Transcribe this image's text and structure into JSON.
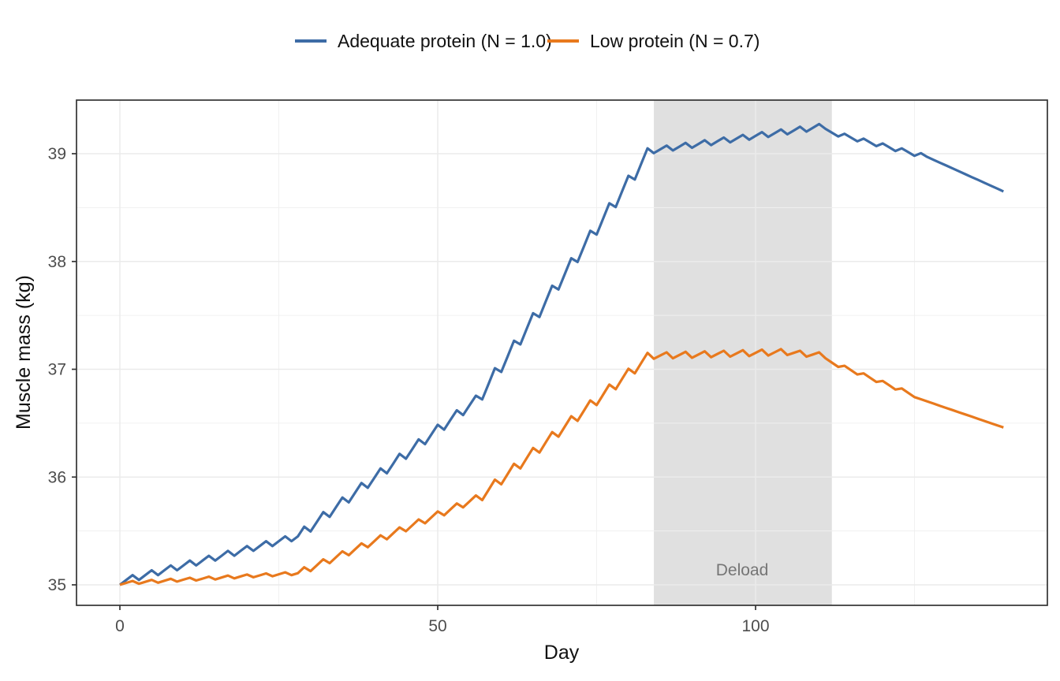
{
  "legend": {
    "items": [
      {
        "label": "Adequate protein (N = 1.0)",
        "color": "#3D6CA6"
      },
      {
        "label": "Low protein (N = 0.7)",
        "color": "#E8791D"
      }
    ]
  },
  "axes": {
    "x": {
      "label": "Day",
      "ticks": [
        0,
        50,
        100
      ],
      "minor_ticks": [
        25,
        75,
        125
      ]
    },
    "y": {
      "label": "Muscle mass (kg)",
      "ticks": [
        35,
        36,
        37,
        38,
        39
      ],
      "minor_ticks": [
        35.5,
        36.5,
        37.5,
        38.5
      ]
    }
  },
  "annotation": {
    "band": {
      "label": "Deload",
      "day_start": 84,
      "day_end": 112,
      "fill": "#E0E0E0",
      "label_color": "#757575"
    }
  },
  "style": {
    "grid_major_color": "#EBEBEB",
    "grid_minor_color": "#F0F0F0",
    "panel_border_color": "#333333",
    "tick_color": "#333333"
  },
  "chart_data": {
    "type": "line",
    "title": "",
    "xlabel": "Day",
    "ylabel": "Muscle mass (kg)",
    "xlim": [
      -7,
      146
    ],
    "ylim": [
      34.8,
      39.5
    ],
    "grid": true,
    "legend_position": "top",
    "x": [
      0,
      1,
      2,
      3,
      4,
      5,
      6,
      7,
      8,
      9,
      10,
      11,
      12,
      13,
      14,
      15,
      16,
      17,
      18,
      19,
      20,
      21,
      22,
      23,
      24,
      25,
      26,
      27,
      28,
      29,
      30,
      31,
      32,
      33,
      34,
      35,
      36,
      37,
      38,
      39,
      40,
      41,
      42,
      43,
      44,
      45,
      46,
      47,
      48,
      49,
      50,
      51,
      52,
      53,
      54,
      55,
      56,
      57,
      58,
      59,
      60,
      61,
      62,
      63,
      64,
      65,
      66,
      67,
      68,
      69,
      70,
      71,
      72,
      73,
      74,
      75,
      76,
      77,
      78,
      79,
      80,
      81,
      82,
      83,
      84,
      85,
      86,
      87,
      88,
      89,
      90,
      91,
      92,
      93,
      94,
      95,
      96,
      97,
      98,
      99,
      100,
      101,
      102,
      103,
      104,
      105,
      106,
      107,
      108,
      109,
      110,
      111,
      112,
      113,
      114,
      115,
      116,
      117,
      118,
      119,
      120,
      121,
      122,
      123,
      124,
      125,
      126,
      127,
      128,
      129,
      130,
      131,
      132,
      133,
      134,
      135,
      136,
      137,
      138,
      139
    ],
    "series": [
      {
        "name": "Adequate protein (N = 1.0)",
        "color": "#3D6CA6",
        "values": [
          35.0,
          35.045,
          35.09,
          35.045,
          35.09,
          35.135,
          35.09,
          35.135,
          35.18,
          35.135,
          35.18,
          35.225,
          35.18,
          35.225,
          35.27,
          35.225,
          35.27,
          35.315,
          35.27,
          35.315,
          35.36,
          35.315,
          35.36,
          35.405,
          35.36,
          35.405,
          35.45,
          35.405,
          35.45,
          35.54,
          35.495,
          35.585,
          35.675,
          35.63,
          35.72,
          35.81,
          35.765,
          35.855,
          35.945,
          35.9,
          35.99,
          36.08,
          36.035,
          36.125,
          36.215,
          36.17,
          36.26,
          36.35,
          36.305,
          36.395,
          36.485,
          36.44,
          36.53,
          36.62,
          36.575,
          36.665,
          36.755,
          36.72,
          36.865,
          37.01,
          36.975,
          37.12,
          37.265,
          37.23,
          37.375,
          37.52,
          37.485,
          37.63,
          37.775,
          37.74,
          37.885,
          38.03,
          37.995,
          38.14,
          38.285,
          38.25,
          38.395,
          38.54,
          38.505,
          38.65,
          38.795,
          38.76,
          38.905,
          39.05,
          39.005,
          39.04,
          39.075,
          39.03,
          39.065,
          39.1,
          39.055,
          39.09,
          39.125,
          39.08,
          39.115,
          39.15,
          39.105,
          39.14,
          39.175,
          39.13,
          39.165,
          39.2,
          39.155,
          39.19,
          39.225,
          39.18,
          39.215,
          39.25,
          39.205,
          39.24,
          39.275,
          39.23,
          39.195,
          39.16,
          39.185,
          39.15,
          39.115,
          39.14,
          39.105,
          39.07,
          39.095,
          39.06,
          39.025,
          39.05,
          39.015,
          38.98,
          39.005,
          38.97,
          38.943,
          38.917,
          38.89,
          38.863,
          38.837,
          38.81,
          38.783,
          38.757,
          38.73,
          38.703,
          38.677,
          38.65
        ]
      },
      {
        "name": "Low protein (N = 0.7)",
        "color": "#E8791D",
        "values": [
          35.0,
          35.018,
          35.036,
          35.01,
          35.028,
          35.046,
          35.02,
          35.038,
          35.056,
          35.03,
          35.048,
          35.066,
          35.04,
          35.058,
          35.076,
          35.05,
          35.068,
          35.086,
          35.06,
          35.078,
          35.096,
          35.07,
          35.088,
          35.106,
          35.08,
          35.098,
          35.116,
          35.09,
          35.108,
          35.163,
          35.127,
          35.182,
          35.237,
          35.201,
          35.256,
          35.311,
          35.275,
          35.33,
          35.385,
          35.349,
          35.404,
          35.459,
          35.423,
          35.478,
          35.533,
          35.497,
          35.552,
          35.607,
          35.571,
          35.626,
          35.681,
          35.645,
          35.7,
          35.755,
          35.719,
          35.774,
          35.829,
          35.786,
          35.881,
          35.976,
          35.933,
          36.028,
          36.123,
          36.08,
          36.175,
          36.27,
          36.227,
          36.322,
          36.417,
          36.374,
          36.469,
          36.564,
          36.521,
          36.616,
          36.711,
          36.668,
          36.763,
          36.858,
          36.815,
          36.91,
          37.005,
          36.962,
          37.057,
          37.152,
          37.097,
          37.127,
          37.157,
          37.102,
          37.132,
          37.162,
          37.107,
          37.137,
          37.167,
          37.112,
          37.142,
          37.172,
          37.117,
          37.147,
          37.177,
          37.122,
          37.152,
          37.182,
          37.127,
          37.157,
          37.187,
          37.132,
          37.152,
          37.172,
          37.117,
          37.137,
          37.157,
          37.102,
          37.062,
          37.022,
          37.032,
          36.992,
          36.952,
          36.962,
          36.922,
          36.882,
          36.892,
          36.852,
          36.812,
          36.822,
          36.782,
          36.742,
          36.722,
          36.702,
          36.682,
          36.661,
          36.641,
          36.621,
          36.601,
          36.581,
          36.561,
          36.54,
          36.52,
          36.5,
          36.48,
          36.46
        ]
      }
    ]
  }
}
